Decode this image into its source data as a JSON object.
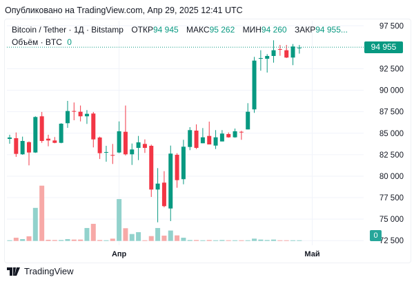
{
  "published": "Опубликовано на TradingView.com, Апр 29, 2025 12:41 UTC",
  "legend": {
    "symbol": "Bitcoin / Tether · 1Д · Bitstamp",
    "open_label": "ОТКР",
    "open": "94 945",
    "high_label": "МАКС",
    "high": "95 262",
    "low_label": "МИН",
    "low": "94 260",
    "close_label": "ЗАКР",
    "close": "94 955...",
    "volume_label": "Объём · BTC",
    "volume": "0"
  },
  "last_price_label": "94 955",
  "volume_axis_label": "0",
  "footer": {
    "brand": "TradingView"
  },
  "colors": {
    "up": "#089981",
    "down": "#F23645",
    "up_volume": "#92D2CC",
    "down_volume": "#F7A9A7",
    "grid": "#F0F3FA"
  },
  "chart_data": {
    "type": "candlestick",
    "x_start": "2025-03-15",
    "x_end": "2025-04-29",
    "interval": "1D",
    "ylim": [
      72500,
      97500
    ],
    "grid": true,
    "y_ticks": [
      "97 500",
      "92 500",
      "90 000",
      "87 500",
      "85 000",
      "82 500",
      "80 000",
      "77 500",
      "75 000",
      "72 500"
    ],
    "y_tick_values": [
      97500,
      92500,
      90000,
      87500,
      85000,
      82500,
      80000,
      77500,
      75000,
      72500
    ],
    "x_ticks": [
      {
        "label": "Апр",
        "date": "2025-04-01"
      },
      {
        "label": "Май",
        "date": "2025-05-01"
      }
    ],
    "last_price": 94955,
    "open": [
      84339,
      84419,
      82546,
      83961,
      82755,
      86968,
      84363,
      84154,
      83880,
      86164,
      87584,
      87498,
      86968,
      87289,
      84500,
      82755,
      82465,
      82755,
      85167,
      82546,
      83293,
      83751,
      83535,
      78445,
      79249,
      76242,
      82489,
      79651,
      83398,
      85303,
      83832,
      84684,
      83559,
      84041,
      84901,
      84523,
      85167,
      85440,
      87772,
      93665,
      93665,
      93987,
      94790,
      94654,
      93802,
      94945
    ],
    "high": [
      84821,
      85087,
      84604,
      84041,
      86968,
      87474,
      84821,
      84556,
      86164,
      88761,
      88576,
      88222,
      87691,
      87474,
      84604,
      83535,
      83752,
      86373,
      88222,
      83800,
      84684,
      84282,
      83671,
      80937,
      80584,
      83559,
      82675,
      84234,
      85705,
      86027,
      85601,
      86349,
      85360,
      85360,
      85087,
      85545,
      85280,
      88495,
      93882,
      94654,
      94204,
      95812,
      95273,
      95273,
      95378,
      95262
    ],
    "low": [
      83776,
      82248,
      82489,
      81259,
      82707,
      83880,
      83478,
      83832,
      83832,
      85625,
      86509,
      86373,
      86083,
      83350,
      81999,
      81685,
      81420,
      82675,
      82409,
      81308,
      81870,
      82707,
      77585,
      74634,
      76379,
      74771,
      78654,
      79057,
      83028,
      83157,
      83832,
      83695,
      83157,
      84041,
      84475,
      84475,
      84234,
      85440,
      87370,
      92274,
      92057,
      93207,
      94011,
      93745,
      92917,
      94260
    ],
    "close": [
      84500,
      82594,
      84097,
      82755,
      86887,
      84097,
      84154,
      83880,
      86107,
      87584,
      87530,
      86968,
      87257,
      84282,
      82675,
      82811,
      82409,
      85223,
      82546,
      83108,
      83936,
      83293,
      78445,
      79137,
      76515,
      82626,
      79538,
      83430,
      85360,
      83293,
      84523,
      83695,
      84523,
      84957,
      84523,
      85223,
      85119,
      87498,
      93448,
      93745,
      93987,
      94654,
      94710,
      93802,
      95088,
      94955
    ],
    "volume_relative": [
      2,
      14,
      8,
      20,
      143,
      239,
      5,
      4,
      4,
      8,
      6,
      6,
      56,
      74,
      4,
      2,
      10,
      181,
      55,
      30,
      38,
      3,
      21,
      56,
      23,
      45,
      24,
      14,
      4,
      4,
      3,
      4,
      3,
      4,
      3,
      2,
      2,
      3,
      10,
      6,
      4,
      6,
      3,
      2,
      2,
      2
    ]
  }
}
